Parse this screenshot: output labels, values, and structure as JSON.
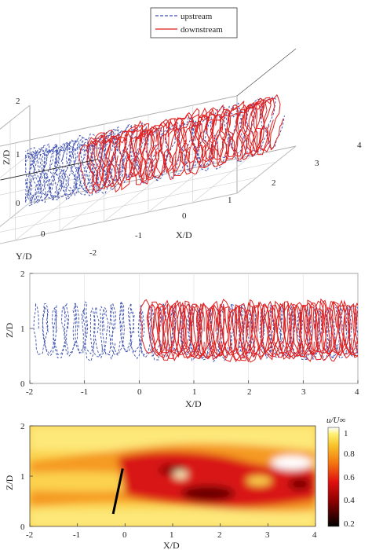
{
  "colors": {
    "upstream": "#3d4fb0",
    "downstream": "#e01e1e"
  },
  "chart_data": [
    {
      "type": "line",
      "view": "3d",
      "series": [
        {
          "name": "upstream",
          "x_range": [
            -2,
            0.3
          ]
        },
        {
          "name": "downstream",
          "x_range": [
            0,
            4
          ]
        }
      ],
      "x_ticks": [
        "0",
        "1",
        "2",
        "3",
        "4"
      ],
      "y_ticks": [
        "-2",
        "-1",
        "0"
      ],
      "z_ticks": [
        "0",
        "1",
        "2"
      ],
      "x_label": "X/D",
      "y_label": "Y/D",
      "z_label": "Z/D",
      "xlim": [
        -2,
        4
      ],
      "ylim": [
        -2,
        1
      ],
      "zlim": [
        0,
        2
      ],
      "legend_position": "top-center"
    },
    {
      "type": "line",
      "view": "side",
      "x_ticks": [
        "-2",
        "-1",
        "0",
        "1",
        "2",
        "3",
        "4"
      ],
      "y_ticks": [
        "0",
        "1",
        "2"
      ],
      "x_label": "X/D",
      "y_label": "Z/D",
      "xlim": [
        -2,
        4
      ],
      "ylim": [
        0,
        2
      ],
      "grid": true
    },
    {
      "type": "heatmap",
      "x_ticks": [
        "-2",
        "-1",
        "0",
        "1",
        "2",
        "3",
        "4"
      ],
      "y_ticks": [
        "0",
        "1",
        "2"
      ],
      "x_label": "X/D",
      "y_label": "Z/D",
      "xlim": [
        -2,
        4
      ],
      "ylim": [
        0,
        2
      ],
      "colorbar_ticks": [
        "0.2",
        "0.4",
        "0.6",
        "0.8",
        "1"
      ],
      "colorbar_range": [
        0.2,
        1.05
      ],
      "colorbar_label": "u/U∞",
      "marker_line": {
        "from": [
          -0.25,
          0.25
        ],
        "to": [
          -0.05,
          1.15
        ]
      }
    }
  ]
}
